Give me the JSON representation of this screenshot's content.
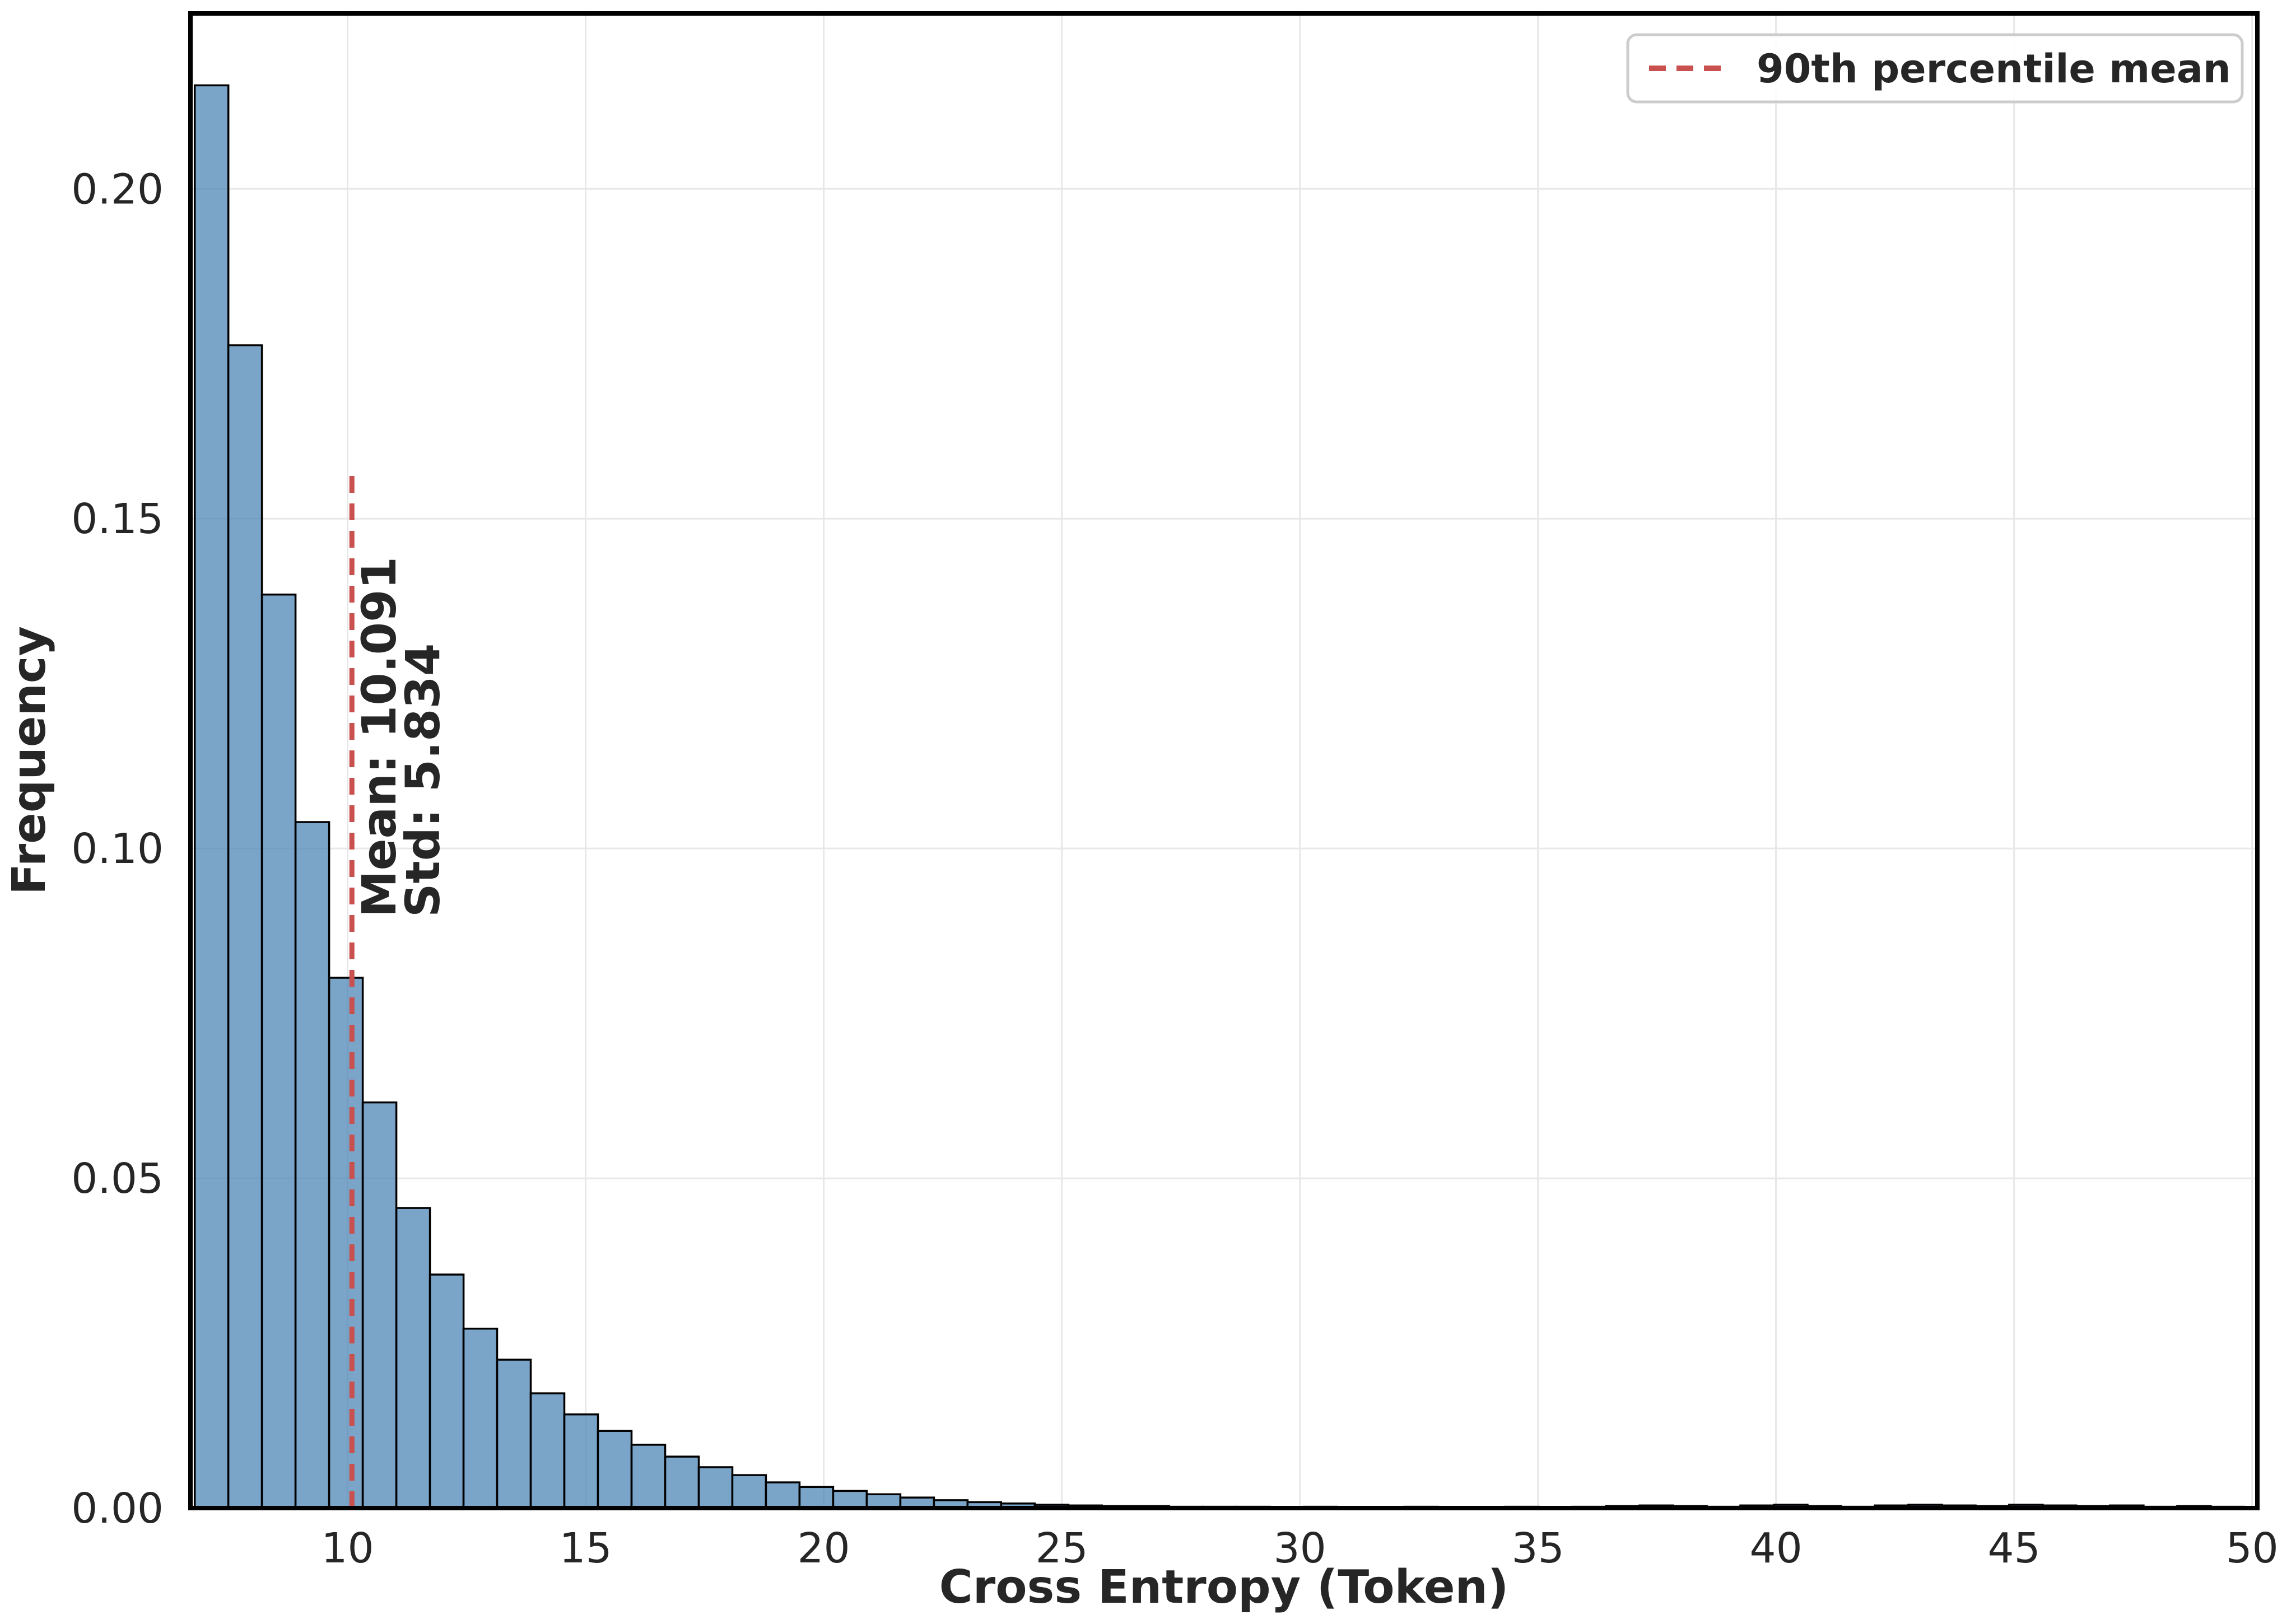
{
  "figure": {
    "background": "#ffffff"
  },
  "chart_data": {
    "type": "histogram",
    "xlabel": "Cross Entropy (Token)",
    "ylabel": "Frequency",
    "xlim": [
      6.7,
      50.11
    ],
    "ylim": [
      0,
      0.2266
    ],
    "x_ticks": [
      10,
      15,
      20,
      25,
      30,
      35,
      40,
      45,
      50
    ],
    "y_ticks": [
      0.0,
      0.05,
      0.1,
      0.15,
      0.2
    ],
    "y_tick_labels": [
      "0.00",
      "0.05",
      "0.10",
      "0.15",
      "0.20"
    ],
    "grid": true,
    "legend_position": "upper right",
    "bins": {
      "start": 6.79,
      "width": 0.7057,
      "frequencies": [
        0.2157,
        0.1763,
        0.1385,
        0.104,
        0.0804,
        0.0615,
        0.0455,
        0.0354,
        0.0272,
        0.0225,
        0.0174,
        0.0142,
        0.0117,
        0.0096,
        0.0078,
        0.0062,
        0.005,
        0.0039,
        0.0032,
        0.0026,
        0.0021,
        0.0016,
        0.0012,
        0.0009,
        0.0007,
        0.0005,
        0.0004,
        0.0003,
        0.0003,
        0.0002,
        0.0002,
        0.0002,
        0.0001,
        0.0002,
        0.0001,
        0.0001,
        0.0002,
        0.0001,
        0.0001,
        0.0002,
        0.0001,
        0.0002,
        0.0003,
        0.0004,
        0.0003,
        0.0002,
        0.0004,
        0.0005,
        0.0003,
        0.0002,
        0.0004,
        0.0005,
        0.0004,
        0.0003,
        0.0005,
        0.0004,
        0.0003,
        0.0004,
        0.0002,
        0.0003,
        0.0002
      ]
    },
    "mean": 10.091,
    "std": 5.834,
    "mean_line": {
      "x": 10.091,
      "y_top": 0.157,
      "style": "dashed"
    },
    "legend": {
      "entries": [
        {
          "label": "90th percentile mean",
          "linestyle": "dashed"
        }
      ]
    },
    "annotations": [
      {
        "text": "Mean: 10.091",
        "rotation": -90
      },
      {
        "text": "Std: 5.834",
        "rotation": -90
      }
    ],
    "colors": {
      "bar_fill": "#4682b4",
      "bar_fill_opacity": "0.72",
      "bar_edge": "#000000",
      "grid": "#e8e8e8",
      "spine": "#000000",
      "text": "#262626",
      "mean_line": "#c8504f",
      "legend_border": "#cccccc"
    }
  }
}
